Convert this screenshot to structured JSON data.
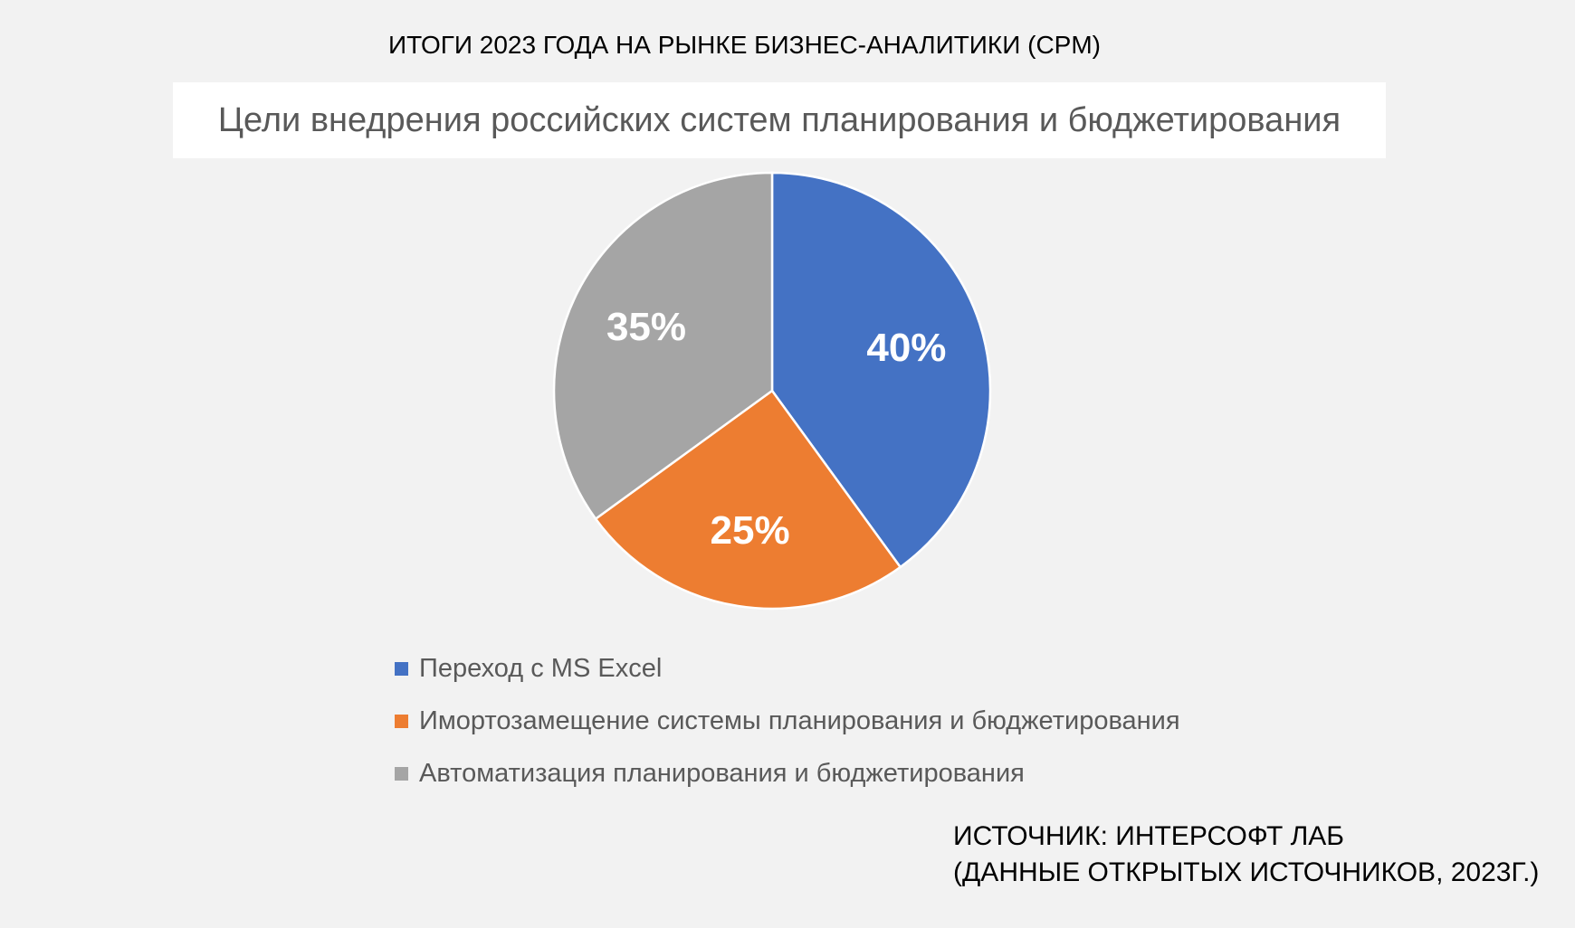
{
  "header": {
    "title": "ИТОГИ 2023 ГОДА НА РЫНКЕ БИЗНЕС-АНАЛИТИКИ (CPM)"
  },
  "source": {
    "line1": "ИСТОЧНИК: ИНТЕРСОФТ ЛАБ",
    "line2": "(ДАННЫЕ ОТКРЫТЫХ ИСТОЧНИКОВ, 2023Г.)"
  },
  "chart_data": {
    "type": "pie",
    "title": "Цели внедрения российских систем планирования и бюджетирования",
    "categories": [
      "Переход с MS Excel",
      "Имортозамещение системы планирования и бюджетирования",
      "Автоматизация планирования и бюджетирования"
    ],
    "values": [
      40,
      25,
      35
    ],
    "data_labels": [
      "40%",
      "25%",
      "35%"
    ],
    "colors": [
      "#4472c4",
      "#ed7d31",
      "#a5a5a5"
    ],
    "legend_position": "bottom",
    "start_angle": "top, clockwise"
  }
}
